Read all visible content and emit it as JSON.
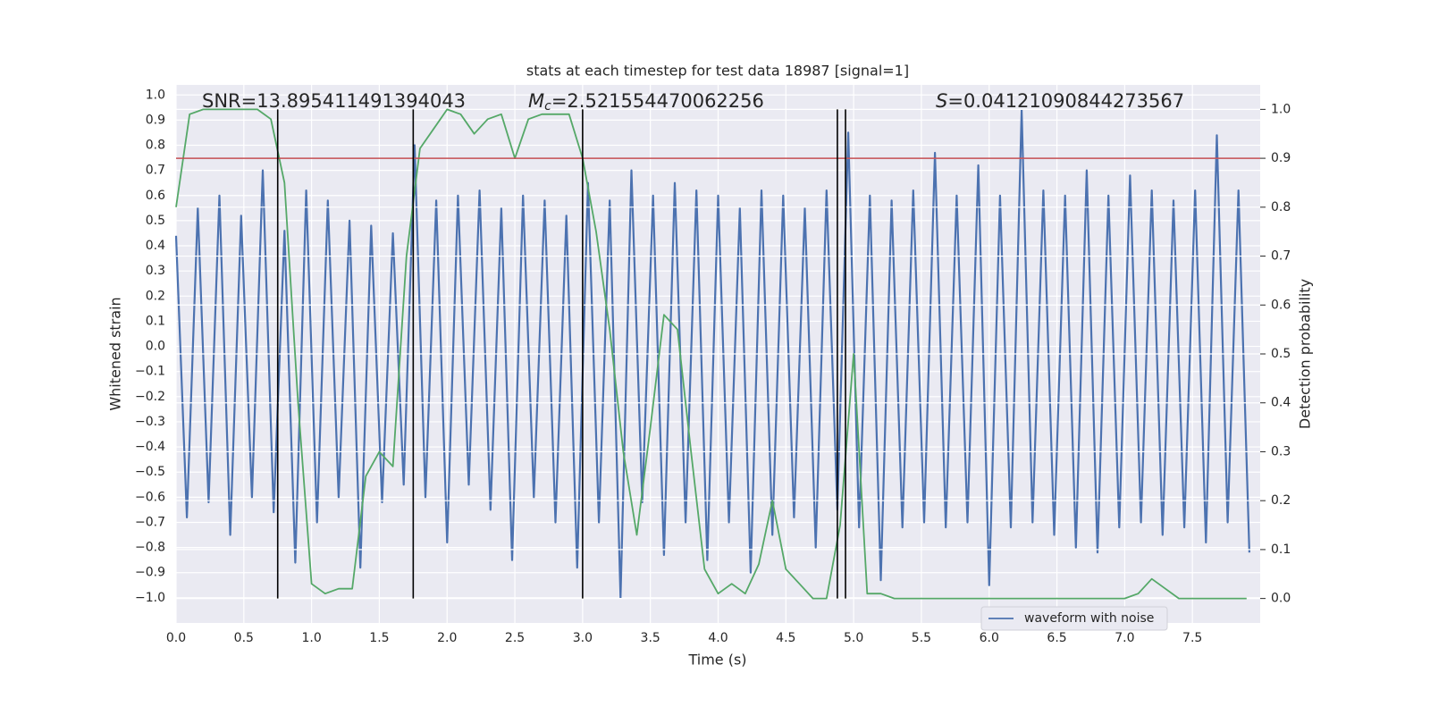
{
  "chart_data": {
    "type": "line",
    "title": "stats at each timestep for test data 18987 [signal=1]",
    "xlabel": "Time (s)",
    "ylabel": "Whitened strain",
    "y2label": "Detection probability",
    "annotations": [
      "SNR=13.895411491394043",
      {
        "italic": "M",
        "sub": "c",
        "text": "=2.521554470062256"
      },
      {
        "italic": "S",
        "text": "=0.04121090844273567"
      }
    ],
    "xlim": [
      0,
      8
    ],
    "ylim": [
      -1.1,
      1.04
    ],
    "y2lim": [
      -0.05,
      1.05
    ],
    "grid": true,
    "legend": "lower right",
    "xticks": [
      {
        "value": 0,
        "label": "0.0"
      },
      {
        "value": 0.5,
        "label": "0.5"
      },
      {
        "value": 1,
        "label": "1.0"
      },
      {
        "value": 1.5,
        "label": "1.5"
      },
      {
        "value": 2,
        "label": "2.0"
      },
      {
        "value": 2.5,
        "label": "2.5"
      },
      {
        "value": 3,
        "label": "3.0"
      },
      {
        "value": 3.5,
        "label": "3.5"
      },
      {
        "value": 4,
        "label": "4.0"
      },
      {
        "value": 4.5,
        "label": "4.5"
      },
      {
        "value": 5,
        "label": "5.0"
      },
      {
        "value": 5.5,
        "label": "5.5"
      },
      {
        "value": 6,
        "label": "6.0"
      },
      {
        "value": 6.5,
        "label": "6.5"
      },
      {
        "value": 7,
        "label": "7.0"
      },
      {
        "value": 7.5,
        "label": "7.5"
      }
    ],
    "yticks": [
      {
        "value": -1,
        "label": "−1.0"
      },
      {
        "value": -0.9,
        "label": "−0.9"
      },
      {
        "value": -0.8,
        "label": "−0.8"
      },
      {
        "value": -0.7,
        "label": "−0.7"
      },
      {
        "value": -0.6,
        "label": "−0.6"
      },
      {
        "value": -0.5,
        "label": "−0.5"
      },
      {
        "value": -0.4,
        "label": "−0.4"
      },
      {
        "value": -0.3,
        "label": "−0.3"
      },
      {
        "value": -0.2,
        "label": "−0.2"
      },
      {
        "value": -0.1,
        "label": "−0.1"
      },
      {
        "value": 0,
        "label": "0.0"
      },
      {
        "value": 0.1,
        "label": "0.1"
      },
      {
        "value": 0.2,
        "label": "0.2"
      },
      {
        "value": 0.3,
        "label": "0.3"
      },
      {
        "value": 0.4,
        "label": "0.4"
      },
      {
        "value": 0.5,
        "label": "0.5"
      },
      {
        "value": 0.6,
        "label": "0.6"
      },
      {
        "value": 0.7,
        "label": "0.7"
      },
      {
        "value": 0.8,
        "label": "0.8"
      },
      {
        "value": 0.9,
        "label": "0.9"
      },
      {
        "value": 1,
        "label": "1.0"
      }
    ],
    "y2ticks": [
      {
        "value": 0,
        "label": "0.0"
      },
      {
        "value": 0.1,
        "label": "0.1"
      },
      {
        "value": 0.2,
        "label": "0.2"
      },
      {
        "value": 0.3,
        "label": "0.3"
      },
      {
        "value": 0.4,
        "label": "0.4"
      },
      {
        "value": 0.5,
        "label": "0.5"
      },
      {
        "value": 0.6,
        "label": "0.6"
      },
      {
        "value": 0.7,
        "label": "0.7"
      },
      {
        "value": 0.8,
        "label": "0.8"
      },
      {
        "value": 0.9,
        "label": "0.9"
      },
      {
        "value": 1,
        "label": "1.0"
      }
    ],
    "series": [
      {
        "name": "waveform with noise",
        "color": "#4c72b0",
        "x": [
          0,
          0.08,
          0.16,
          0.24,
          0.32,
          0.4,
          0.48,
          0.56,
          0.64,
          0.72,
          0.8,
          0.88,
          0.96,
          1.04,
          1.12,
          1.2,
          1.28,
          1.36,
          1.44,
          1.52,
          1.6,
          1.68,
          1.76,
          1.84,
          1.92,
          2,
          2.08,
          2.16,
          2.24,
          2.32,
          2.4,
          2.48,
          2.56,
          2.64,
          2.72,
          2.8,
          2.88,
          2.96,
          3.04,
          3.12,
          3.2,
          3.28,
          3.36,
          3.44,
          3.52,
          3.6,
          3.68,
          3.76,
          3.84,
          3.92,
          4,
          4.08,
          4.16,
          4.24,
          4.32,
          4.4,
          4.48,
          4.56,
          4.64,
          4.72,
          4.8,
          4.88,
          4.96,
          5.04,
          5.12,
          5.2,
          5.28,
          5.36,
          5.44,
          5.52,
          5.6,
          5.68,
          5.76,
          5.84,
          5.92,
          6,
          6.08,
          6.16,
          6.24,
          6.32,
          6.4,
          6.48,
          6.56,
          6.64,
          6.72,
          6.8,
          6.88,
          6.96,
          7.04,
          7.12,
          7.2,
          7.28,
          7.36,
          7.44,
          7.52,
          7.6,
          7.68,
          7.76,
          7.84,
          7.92
        ],
        "values": [
          0.44,
          -0.68,
          0.55,
          -0.62,
          0.6,
          -0.75,
          0.52,
          -0.6,
          0.7,
          -0.66,
          0.46,
          -0.86,
          0.62,
          -0.7,
          0.58,
          -0.6,
          0.5,
          -0.88,
          0.48,
          -0.62,
          0.45,
          -0.55,
          0.8,
          -0.6,
          0.58,
          -0.78,
          0.6,
          -0.55,
          0.62,
          -0.65,
          0.55,
          -0.85,
          0.6,
          -0.6,
          0.58,
          -0.7,
          0.52,
          -0.88,
          0.65,
          -0.7,
          0.58,
          -1.0,
          0.7,
          -0.62,
          0.6,
          -0.83,
          0.65,
          -0.7,
          0.62,
          -0.85,
          0.6,
          -0.7,
          0.55,
          -0.9,
          0.62,
          -0.75,
          0.6,
          -0.68,
          0.55,
          -0.8,
          0.62,
          -0.65,
          0.85,
          -0.72,
          0.6,
          -0.93,
          0.58,
          -0.72,
          0.62,
          -0.7,
          0.77,
          -0.72,
          0.6,
          -0.7,
          0.72,
          -0.95,
          0.6,
          -0.72,
          0.94,
          -0.7,
          0.62,
          -0.75,
          0.6,
          -0.8,
          0.7,
          -0.82,
          0.6,
          -0.72,
          0.68,
          -0.7,
          0.62,
          -0.75,
          0.58,
          -0.72,
          0.62,
          -0.78,
          0.84,
          -0.7,
          0.62,
          -0.82
        ]
      },
      {
        "color": "#55a868",
        "axis": "y2",
        "x": [
          0,
          0.1,
          0.2,
          0.3,
          0.4,
          0.5,
          0.6,
          0.7,
          0.8,
          0.9,
          1,
          1.1,
          1.2,
          1.3,
          1.4,
          1.5,
          1.6,
          1.7,
          1.8,
          1.9,
          2,
          2.1,
          2.2,
          2.3,
          2.4,
          2.5,
          2.6,
          2.7,
          2.8,
          2.9,
          3,
          3.1,
          3.2,
          3.3,
          3.4,
          3.5,
          3.6,
          3.7,
          3.8,
          3.9,
          4,
          4.1,
          4.2,
          4.3,
          4.4,
          4.5,
          4.6,
          4.7,
          4.8,
          4.9,
          5,
          5.1,
          5.2,
          5.3,
          5.4,
          5.5,
          5.6,
          5.7,
          5.8,
          5.9,
          6,
          6.1,
          6.2,
          6.3,
          6.4,
          6.5,
          6.6,
          6.7,
          6.8,
          6.9,
          7,
          7.1,
          7.2,
          7.3,
          7.4,
          7.5,
          7.6,
          7.7,
          7.8,
          7.9
        ],
        "values": [
          0.8,
          0.99,
          1.0,
          1.0,
          1.0,
          1.0,
          1.0,
          0.98,
          0.85,
          0.4,
          0.03,
          0.01,
          0.02,
          0.02,
          0.25,
          0.3,
          0.27,
          0.7,
          0.92,
          0.96,
          1.0,
          0.99,
          0.95,
          0.98,
          0.99,
          0.9,
          0.98,
          0.99,
          0.99,
          0.99,
          0.9,
          0.75,
          0.55,
          0.3,
          0.13,
          0.35,
          0.58,
          0.55,
          0.3,
          0.06,
          0.01,
          0.03,
          0.01,
          0.07,
          0.2,
          0.06,
          0.03,
          0,
          0,
          0.15,
          0.5,
          0.01,
          0.01,
          0,
          0,
          0,
          0,
          0,
          0,
          0,
          0,
          0,
          0,
          0,
          0,
          0,
          0,
          0,
          0,
          0,
          0,
          0.01,
          0.04,
          0.02,
          0,
          0,
          0,
          0,
          0,
          0
        ]
      }
    ],
    "hline": {
      "value": 0.9,
      "axis": "y2",
      "color": "#c44e52"
    },
    "vlines": [
      0.75,
      1.75,
      3.0,
      4.88,
      4.94
    ],
    "vline_color": "#000000"
  }
}
